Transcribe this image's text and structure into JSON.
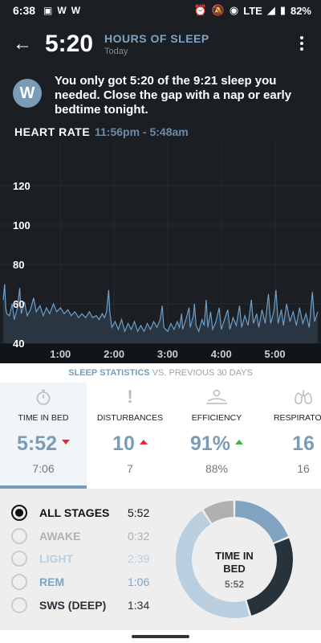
{
  "status": {
    "time": "6:38",
    "left_icons": [
      "image-icon",
      "w-app-icon",
      "w-app-icon"
    ],
    "network": "LTE",
    "battery": "82%"
  },
  "header": {
    "back_icon": "arrow-left-icon",
    "value": "5:20",
    "title": "HOURS OF SLEEP",
    "subtitle": "Today"
  },
  "message": {
    "avatar_letter": "W",
    "text": "You only got 5:20 of the 9:21 sleep you needed. Close the gap with a nap or early bedtime tonight."
  },
  "heart_rate": {
    "title": "HEART RATE",
    "range": "11:56pm - 5:48am"
  },
  "chart_data": {
    "type": "area",
    "title": "HEART RATE",
    "x_unit": "hours after midnight",
    "x_range": [
      -0.067,
      5.8
    ],
    "ylim": [
      40,
      140
    ],
    "y_ticks": [
      40,
      60,
      80,
      100,
      120
    ],
    "x_ticks": [
      "1:00",
      "2:00",
      "3:00",
      "4:00",
      "5:00"
    ],
    "x_tick_values": [
      1,
      2,
      3,
      4,
      5
    ],
    "line_color": "#6f9ec7",
    "grid": true,
    "points": [
      [
        -0.067,
        62
      ],
      [
        -0.04,
        70
      ],
      [
        -0.02,
        58
      ],
      [
        0.0,
        55
      ],
      [
        0.05,
        54
      ],
      [
        0.1,
        60
      ],
      [
        0.14,
        52
      ],
      [
        0.2,
        58
      ],
      [
        0.24,
        68
      ],
      [
        0.27,
        55
      ],
      [
        0.33,
        61
      ],
      [
        0.38,
        54
      ],
      [
        0.44,
        57
      ],
      [
        0.5,
        63
      ],
      [
        0.55,
        56
      ],
      [
        0.62,
        59
      ],
      [
        0.68,
        54
      ],
      [
        0.74,
        58
      ],
      [
        0.8,
        55
      ],
      [
        0.87,
        60
      ],
      [
        0.93,
        56
      ],
      [
        1.0,
        58
      ],
      [
        1.07,
        55
      ],
      [
        1.14,
        57
      ],
      [
        1.2,
        54
      ],
      [
        1.27,
        56
      ],
      [
        1.34,
        53
      ],
      [
        1.4,
        55
      ],
      [
        1.47,
        53
      ],
      [
        1.54,
        56
      ],
      [
        1.6,
        53
      ],
      [
        1.67,
        54
      ],
      [
        1.72,
        52
      ],
      [
        1.78,
        55
      ],
      [
        1.82,
        53
      ],
      [
        1.86,
        56
      ],
      [
        1.9,
        67
      ],
      [
        1.92,
        56
      ],
      [
        1.96,
        48
      ],
      [
        2.02,
        51
      ],
      [
        2.08,
        47
      ],
      [
        2.14,
        52
      ],
      [
        2.2,
        46
      ],
      [
        2.26,
        50
      ],
      [
        2.32,
        47
      ],
      [
        2.38,
        51
      ],
      [
        2.44,
        46
      ],
      [
        2.5,
        49
      ],
      [
        2.56,
        46
      ],
      [
        2.62,
        50
      ],
      [
        2.68,
        47
      ],
      [
        2.74,
        51
      ],
      [
        2.8,
        48
      ],
      [
        2.86,
        52
      ],
      [
        2.9,
        59
      ],
      [
        2.93,
        48
      ],
      [
        3.0,
        46
      ],
      [
        3.06,
        50
      ],
      [
        3.12,
        47
      ],
      [
        3.18,
        51
      ],
      [
        3.22,
        48
      ],
      [
        3.26,
        55
      ],
      [
        3.28,
        47
      ],
      [
        3.34,
        52
      ],
      [
        3.4,
        58
      ],
      [
        3.42,
        48
      ],
      [
        3.48,
        54
      ],
      [
        3.5,
        60
      ],
      [
        3.53,
        49
      ],
      [
        3.58,
        46
      ],
      [
        3.64,
        52
      ],
      [
        3.68,
        49
      ],
      [
        3.72,
        62
      ],
      [
        3.75,
        48
      ],
      [
        3.8,
        56
      ],
      [
        3.84,
        47
      ],
      [
        3.9,
        51
      ],
      [
        3.96,
        58
      ],
      [
        4.0,
        47
      ],
      [
        4.06,
        52
      ],
      [
        4.12,
        57
      ],
      [
        4.16,
        47
      ],
      [
        4.22,
        53
      ],
      [
        4.28,
        49
      ],
      [
        4.34,
        59
      ],
      [
        4.38,
        48
      ],
      [
        4.44,
        54
      ],
      [
        4.5,
        49
      ],
      [
        4.56,
        62
      ],
      [
        4.6,
        50
      ],
      [
        4.66,
        55
      ],
      [
        4.7,
        48
      ],
      [
        4.76,
        57
      ],
      [
        4.82,
        50
      ],
      [
        4.88,
        65
      ],
      [
        4.92,
        50
      ],
      [
        4.98,
        56
      ],
      [
        5.02,
        67
      ],
      [
        5.06,
        50
      ],
      [
        5.12,
        57
      ],
      [
        5.16,
        49
      ],
      [
        5.22,
        60
      ],
      [
        5.28,
        51
      ],
      [
        5.34,
        56
      ],
      [
        5.4,
        49
      ],
      [
        5.46,
        58
      ],
      [
        5.52,
        50
      ],
      [
        5.58,
        55
      ],
      [
        5.64,
        48
      ],
      [
        5.7,
        66
      ],
      [
        5.74,
        51
      ],
      [
        5.8,
        56
      ]
    ]
  },
  "stats_header": {
    "label": "SLEEP STATISTICS",
    "compare": " VS. PREVIOUS 30 DAYS"
  },
  "stats": [
    {
      "label": "TIME IN BED",
      "value": "5:52",
      "trend": "down",
      "compare": "7:06",
      "icon": "stopwatch-icon"
    },
    {
      "label": "DISTURBANCES",
      "value": "10",
      "trend": "up",
      "compare": "7",
      "icon": "exclamation-icon"
    },
    {
      "label": "EFFICIENCY",
      "value": "91%",
      "trend": "up-good",
      "compare": "88%",
      "icon": "sleeping-person-icon"
    },
    {
      "label": "RESPIRATORY",
      "value": "16",
      "trend": "",
      "compare": "16",
      "icon": "lungs-icon"
    }
  ],
  "stages": [
    {
      "label": "ALL STAGES",
      "value": "5:52",
      "color": "#111111",
      "selected": true
    },
    {
      "label": "AWAKE",
      "value": "0:32",
      "color": "#b0b0b0",
      "selected": false
    },
    {
      "label": "LIGHT",
      "value": "2:39",
      "color": "#b9cfe0",
      "selected": false
    },
    {
      "label": "REM",
      "value": "1:06",
      "color": "#7fa3c1",
      "selected": false
    },
    {
      "label": "SWS (DEEP)",
      "value": "1:34",
      "color": "#27323b",
      "selected": false
    }
  ],
  "donut": {
    "title": "TIME IN BED",
    "value": "5:52",
    "segments_minutes": {
      "awake": 32,
      "light": 159,
      "rem": 66,
      "deep": 94
    },
    "colors": {
      "awake": "#b0b0b0",
      "light": "#b9cfe0",
      "rem": "#7fa3c1",
      "deep": "#27323b"
    }
  }
}
